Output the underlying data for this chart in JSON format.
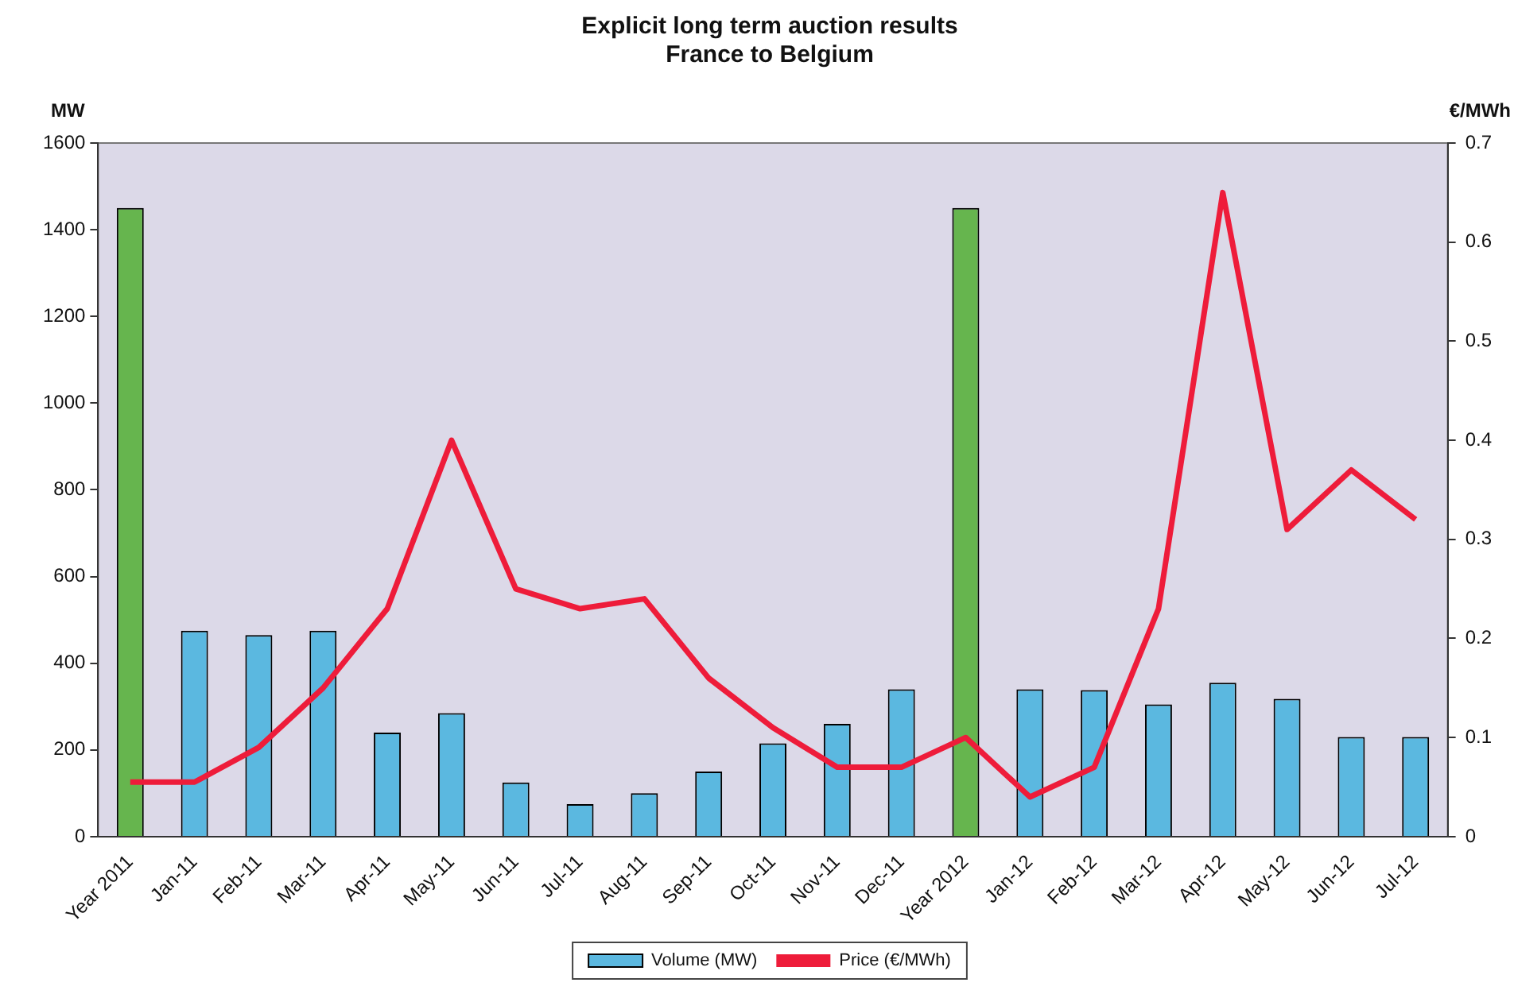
{
  "chart_data": {
    "type": "bar",
    "title": "Explicit long term auction results",
    "subtitle": "France to Belgium",
    "ylabel": "MW",
    "y2label": "€/MWh",
    "categories": [
      "Year 2011",
      "Jan-11",
      "Feb-11",
      "Mar-11",
      "Apr-11",
      "May-11",
      "Jun-11",
      "Jul-11",
      "Aug-11",
      "Sep-11",
      "Oct-11",
      "Nov-11",
      "Dec-11",
      "Year 2012",
      "Jan-12",
      "Feb-12",
      "Mar-12",
      "Apr-12",
      "May-12",
      "Jun-12",
      "Jul-12"
    ],
    "series": [
      {
        "name": "Volume (MW)",
        "color": "#5bb8e0",
        "colors": [
          "#66b54e",
          "#5bb8e0",
          "#5bb8e0",
          "#5bb8e0",
          "#5bb8e0",
          "#5bb8e0",
          "#5bb8e0",
          "#5bb8e0",
          "#5bb8e0",
          "#5bb8e0",
          "#5bb8e0",
          "#5bb8e0",
          "#5bb8e0",
          "#66b54e",
          "#5bb8e0",
          "#5bb8e0",
          "#5bb8e0",
          "#5bb8e0",
          "#5bb8e0",
          "#5bb8e0",
          "#5bb8e0"
        ],
        "values": [
          1450,
          475,
          465,
          475,
          240,
          285,
          125,
          75,
          100,
          150,
          215,
          260,
          340,
          1450,
          340,
          338,
          305,
          355,
          318,
          230,
          230
        ]
      },
      {
        "name": "Price (€/MWh)",
        "type": "line",
        "axis": "y2",
        "color": "#ee1c3a",
        "values": [
          0.055,
          0.055,
          0.09,
          0.15,
          0.23,
          0.4,
          0.25,
          0.23,
          0.24,
          0.16,
          0.11,
          0.07,
          0.07,
          0.1,
          0.04,
          0.07,
          0.23,
          0.65,
          0.31,
          0.37,
          0.32
        ]
      }
    ],
    "ylim": [
      0,
      1600
    ],
    "yticks": [
      0,
      200,
      400,
      600,
      800,
      1000,
      1200,
      1400,
      1600
    ],
    "y2lim": [
      0,
      0.7
    ],
    "y2ticks": [
      0,
      0.1,
      0.2,
      0.3,
      0.4,
      0.5,
      0.6,
      0.7
    ],
    "grid": false,
    "legend": "bottom",
    "marker": "none"
  }
}
